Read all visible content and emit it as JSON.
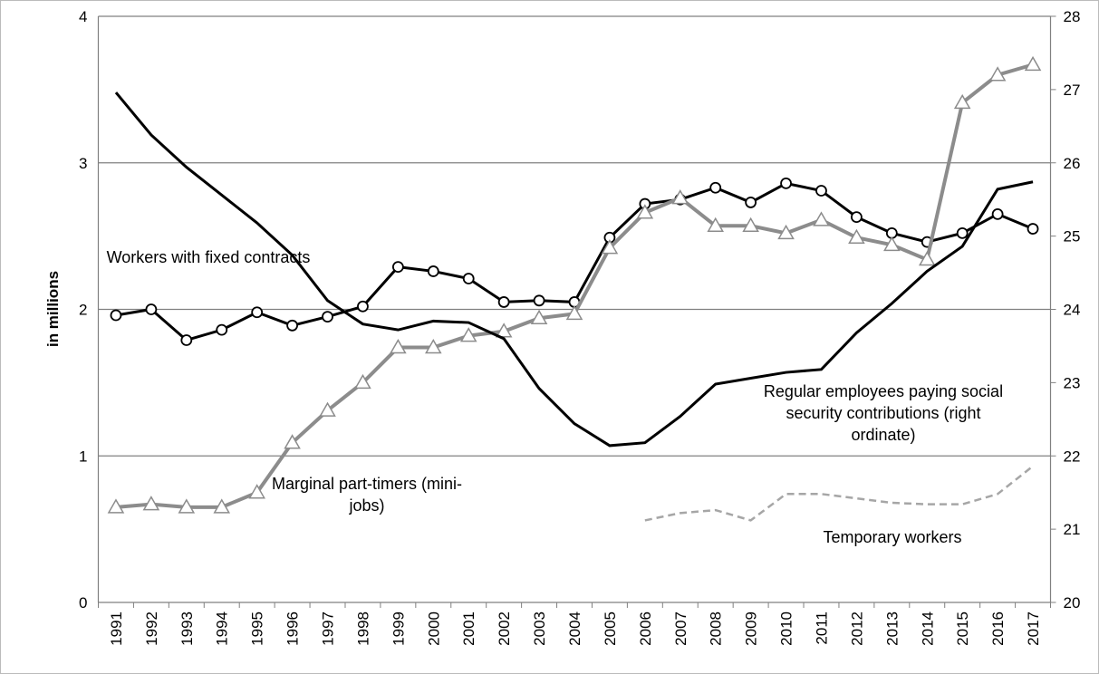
{
  "chart_data": {
    "type": "line",
    "y_label": "in millions",
    "categories": [
      "1991",
      "1992",
      "1993",
      "1994",
      "1995",
      "1996",
      "1997",
      "1998",
      "1999",
      "2000",
      "2001",
      "2002",
      "2003",
      "2004",
      "2005",
      "2006",
      "2007",
      "2008",
      "2009",
      "2010",
      "2011",
      "2012",
      "2013",
      "2014",
      "2015",
      "2016",
      "2017"
    ],
    "ylim": [
      0,
      4
    ],
    "yticks": [
      0,
      1,
      2,
      3,
      4
    ],
    "y2lim": [
      20,
      28
    ],
    "y2ticks": [
      20,
      21,
      22,
      23,
      24,
      25,
      26,
      27,
      28
    ],
    "grid": true,
    "series": [
      {
        "name": "Workers with fixed contracts",
        "color": "#000000",
        "marker": "circle",
        "dashed": false,
        "values": [
          1.96,
          2.0,
          1.79,
          1.86,
          1.98,
          1.89,
          1.95,
          2.02,
          2.29,
          2.26,
          2.21,
          2.05,
          2.06,
          2.05,
          2.49,
          2.72,
          2.75,
          2.83,
          2.73,
          2.86,
          2.81,
          2.63,
          2.52,
          2.46,
          2.52,
          2.65,
          2.55
        ]
      },
      {
        "name": "Marginal part-timers (mini-jobs)",
        "color": "#8c8c8c",
        "marker": "triangle",
        "dashed": false,
        "values": [
          0.65,
          0.67,
          0.65,
          0.65,
          0.75,
          1.09,
          1.31,
          1.5,
          1.74,
          1.74,
          1.82,
          1.85,
          1.94,
          1.97,
          2.42,
          2.66,
          2.76,
          2.57,
          2.57,
          2.52,
          2.61,
          2.49,
          2.44,
          2.34,
          3.41,
          3.6,
          3.67
        ]
      },
      {
        "name": "Regular employees paying social security contributions (right ordinate)",
        "color": "#000000",
        "marker": null,
        "dashed": false,
        "axis": "y2",
        "values": [
          26.96,
          26.38,
          25.94,
          25.56,
          25.18,
          24.74,
          24.12,
          23.8,
          23.72,
          23.84,
          23.82,
          23.6,
          22.92,
          22.44,
          22.14,
          22.18,
          22.54,
          22.98,
          23.06,
          23.14,
          23.18,
          23.68,
          24.08,
          24.52,
          24.86,
          25.64,
          25.74
        ]
      },
      {
        "name": "Temporary workers",
        "color": "#a6a6a6",
        "marker": null,
        "dashed": true,
        "values": [
          null,
          null,
          null,
          null,
          null,
          null,
          null,
          null,
          null,
          null,
          null,
          null,
          null,
          null,
          null,
          0.56,
          0.61,
          0.63,
          0.56,
          0.74,
          0.74,
          0.71,
          0.68,
          0.67,
          0.67,
          0.74,
          0.93
        ]
      }
    ]
  }
}
